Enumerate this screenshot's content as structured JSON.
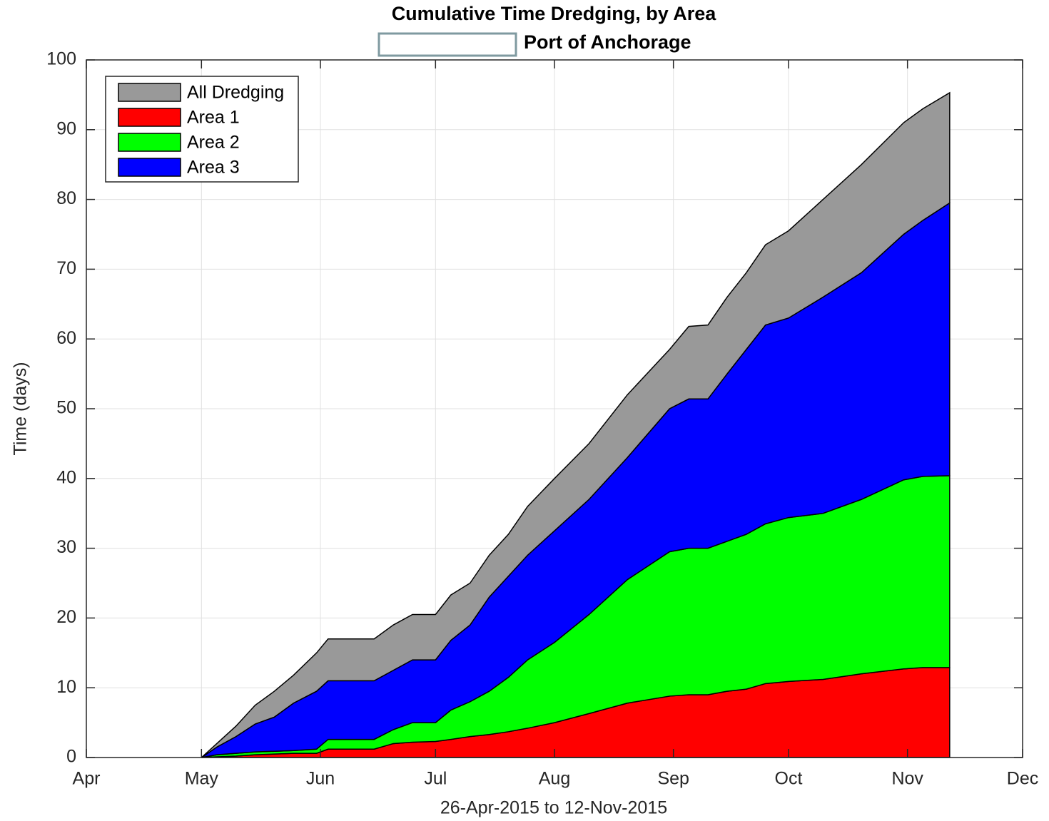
{
  "chart_data": {
    "type": "stacked-area",
    "title": "Cumulative Time Dredging, by Area",
    "subtitle": "Port of Anchorage",
    "xlabel": "26-Apr-2015 to 12-Nov-2015",
    "ylabel": "Time (days)",
    "x": [
      "2015-05-01",
      "2015-05-05",
      "2015-05-10",
      "2015-05-15",
      "2015-05-20",
      "2015-05-25",
      "2015-05-31",
      "2015-06-03",
      "2015-06-10",
      "2015-06-15",
      "2015-06-20",
      "2015-06-25",
      "2015-07-01",
      "2015-07-05",
      "2015-07-10",
      "2015-07-15",
      "2015-07-20",
      "2015-07-25",
      "2015-08-01",
      "2015-08-10",
      "2015-08-20",
      "2015-08-31",
      "2015-09-05",
      "2015-09-10",
      "2015-09-15",
      "2015-09-20",
      "2015-09-25",
      "2015-10-01",
      "2015-10-10",
      "2015-10-20",
      "2015-10-31",
      "2015-11-05",
      "2015-11-12"
    ],
    "series": [
      {
        "name": "Area 1",
        "color": "#ff0000",
        "values": [
          0,
          0.1,
          0.2,
          0.4,
          0.5,
          0.6,
          0.6,
          1.2,
          1.2,
          1.2,
          2,
          2.2,
          2.3,
          2.6,
          3,
          3.3,
          3.7,
          4.2,
          5,
          6.3,
          7.8,
          8.8,
          9,
          9,
          9.5,
          9.8,
          10.6,
          10.9,
          11.2,
          12,
          12.7,
          12.9,
          12.9
        ]
      },
      {
        "name": "Area 2",
        "color": "#00ff00",
        "values": [
          0,
          0.3,
          0.4,
          0.4,
          0.4,
          0.4,
          0.6,
          1.4,
          1.4,
          1.4,
          2,
          2.8,
          2.7,
          4.2,
          5,
          6.2,
          7.8,
          9.8,
          11.5,
          14.2,
          17.7,
          20.7,
          21,
          21,
          21.5,
          22.2,
          22.9,
          23.5,
          23.8,
          25,
          27.1,
          27.4,
          27.5
        ]
      },
      {
        "name": "Area 3",
        "color": "#0000ff",
        "values": [
          0,
          1.1,
          2.4,
          4,
          4.9,
          6.8,
          8.3,
          8.4,
          8.4,
          8.4,
          8.5,
          9,
          9,
          10,
          11,
          13.5,
          14.5,
          15,
          16,
          16.5,
          17.5,
          20.5,
          21.4,
          21.4,
          24,
          26.5,
          28.5,
          28.6,
          31,
          32.5,
          35.2,
          36.7,
          39.1
        ]
      },
      {
        "name": "All Dredging",
        "color": "#999999",
        "values": [
          0,
          0.5,
          1.5,
          2.7,
          3.7,
          4,
          5.5,
          6,
          6,
          6,
          6.5,
          6.5,
          6.5,
          6.5,
          6,
          6,
          6,
          7,
          7.5,
          8,
          9,
          8.5,
          10.4,
          10.6,
          11,
          11,
          11.5,
          12.5,
          14,
          15.5,
          16,
          16,
          15.8
        ]
      }
    ],
    "legend_order": [
      "All Dredging",
      "Area 1",
      "Area 2",
      "Area 3"
    ],
    "legend": "upper-left",
    "xlim": [
      "2015-04-01",
      "2015-12-01"
    ],
    "xticks": [
      {
        "value": "2015-04-01",
        "label": "Apr"
      },
      {
        "value": "2015-05-01",
        "label": "May"
      },
      {
        "value": "2015-06-01",
        "label": "Jun"
      },
      {
        "value": "2015-07-01",
        "label": "Jul"
      },
      {
        "value": "2015-08-01",
        "label": "Aug"
      },
      {
        "value": "2015-09-01",
        "label": "Sep"
      },
      {
        "value": "2015-10-01",
        "label": "Oct"
      },
      {
        "value": "2015-11-01",
        "label": "Nov"
      },
      {
        "value": "2015-12-01",
        "label": "Dec"
      }
    ],
    "ylim": [
      0,
      100
    ],
    "yticks": [
      0,
      10,
      20,
      30,
      40,
      50,
      60,
      70,
      80,
      90,
      100
    ],
    "grid": true
  }
}
